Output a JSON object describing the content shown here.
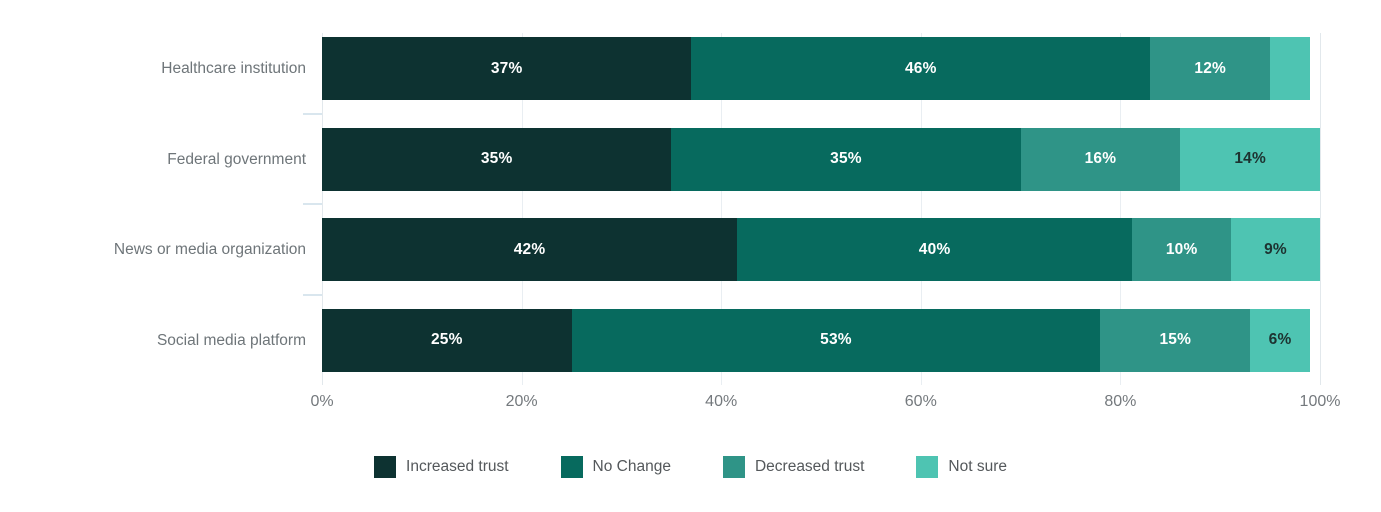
{
  "page": {
    "background": "#ffffff"
  },
  "chart_data": {
    "type": "bar",
    "variant": "horizontal_stacked",
    "title": "",
    "xlabel": "",
    "ylabel": "",
    "x_axis": {
      "ticks": [
        "0%",
        "20%",
        "40%",
        "60%",
        "80%",
        "100%"
      ],
      "tick_values": [
        0,
        20,
        40,
        60,
        80,
        100
      ],
      "range": [
        0,
        100
      ],
      "grid": true
    },
    "categories": [
      "Healthcare institution",
      "Federal government",
      "News or media organization",
      "Social media platform"
    ],
    "series": [
      {
        "name": "Increased trust",
        "color": "#0d3231",
        "label_color": "#ffffff",
        "values": [
          37,
          35,
          42,
          25
        ]
      },
      {
        "name": "No Change",
        "color": "#076a5e",
        "label_color": "#ffffff",
        "values": [
          46,
          35,
          40,
          53
        ]
      },
      {
        "name": "Decreased trust",
        "color": "#2f9487",
        "label_color": "#ffffff",
        "values": [
          12,
          16,
          10,
          15
        ]
      },
      {
        "name": "Not sure",
        "color": "#4ec4b2",
        "label_color": "#1d3230",
        "values": [
          4,
          14,
          9,
          6
        ]
      }
    ],
    "segment_labels": [
      [
        "37%",
        "46%",
        "12%",
        ""
      ],
      [
        "35%",
        "35%",
        "16%",
        "14%"
      ],
      [
        "42%",
        "40%",
        "10%",
        "9%"
      ],
      [
        "25%",
        "53%",
        "15%",
        "6%"
      ]
    ],
    "legend": {
      "position": "bottom",
      "items": [
        "Increased trust",
        "No Change",
        "Decreased trust",
        "Not sure"
      ]
    }
  },
  "style_colors": {
    "gridline": "#e9eef2",
    "gridline_edge": "#e2e8ec",
    "category_text": "#6e7579",
    "axis_text": "#74797d",
    "legend_text": "#54585b",
    "category_tick": "#d9e6ee"
  }
}
